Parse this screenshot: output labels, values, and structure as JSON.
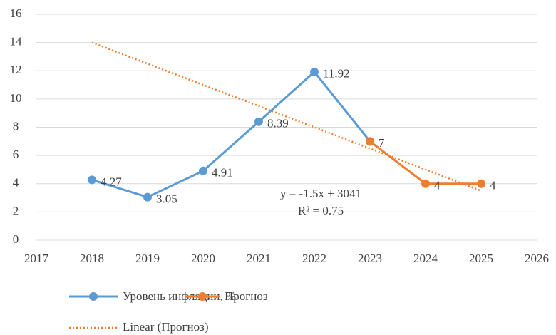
{
  "chart_data": {
    "type": "line",
    "xlim": [
      2017,
      2026
    ],
    "xticks": [
      2017,
      2018,
      2019,
      2020,
      2021,
      2022,
      2023,
      2024,
      2025,
      2026
    ],
    "ylim": [
      0,
      16
    ],
    "yticks": [
      0,
      2,
      4,
      6,
      8,
      10,
      12,
      14,
      16
    ],
    "grid": true,
    "series": [
      {
        "name": "Уровень инфляции, %",
        "color": "#5b9bd5",
        "x": [
          2018,
          2019,
          2020,
          2021,
          2022,
          2023
        ],
        "values": [
          4.27,
          3.05,
          4.91,
          8.39,
          11.92,
          7
        ]
      },
      {
        "name": "Прогноз",
        "color": "#ed7d31",
        "x": [
          2023,
          2024,
          2025
        ],
        "values": [
          7,
          4,
          4
        ]
      }
    ],
    "trendline": {
      "name": "Linear (Прогноз)",
      "color": "#ed7d31",
      "x": [
        2018,
        2025
      ],
      "values": [
        14,
        3.5
      ]
    },
    "annotations": [
      "y = -1.5x + 3041",
      "R² = 0.75"
    ],
    "legend": "bottom"
  }
}
